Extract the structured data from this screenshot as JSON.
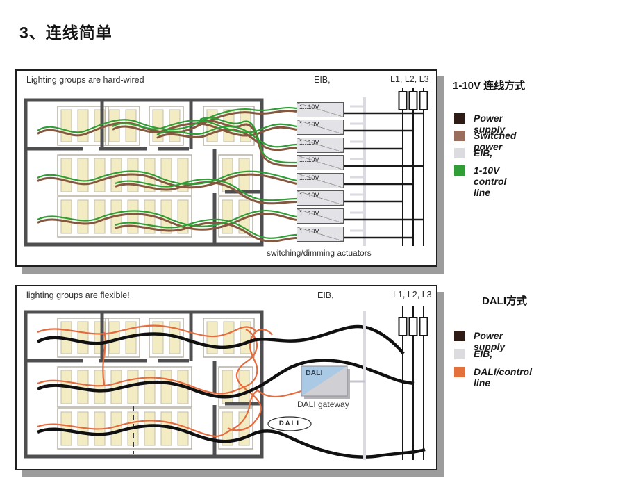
{
  "page_title": "3、连线简单",
  "panel_top": {
    "header": "Lighting groups are hard-wired",
    "eib_label": "EIB,",
    "phases_label": "L1, L2, L3",
    "actuator_label": "1...10V",
    "caption": "switching/dimming actuators"
  },
  "legend_top": {
    "title": "1-10V 连线方式",
    "items": [
      {
        "label": "Power supply",
        "color": "#2e1b15"
      },
      {
        "label": "Switched power",
        "color": "#9a6e5c"
      },
      {
        "label": "EIB,",
        "color": "#dcdce0"
      },
      {
        "label": "1-10V control line",
        "color": "#2f9e35"
      }
    ]
  },
  "panel_bottom": {
    "header": "lighting groups are flexible!",
    "eib_label": "EIB,",
    "phases_label": "L1, L2, L3",
    "gateway_label": "DALI",
    "gateway_caption": "DALI gateway",
    "logo_label": "DALI"
  },
  "legend_bottom": {
    "title": "DALI方式",
    "items": [
      {
        "label": "Power supply",
        "color": "#2e1b15"
      },
      {
        "label": "EIB,",
        "color": "#dcdce0"
      },
      {
        "label": "DALI/control line",
        "color": "#e4703c"
      }
    ]
  }
}
